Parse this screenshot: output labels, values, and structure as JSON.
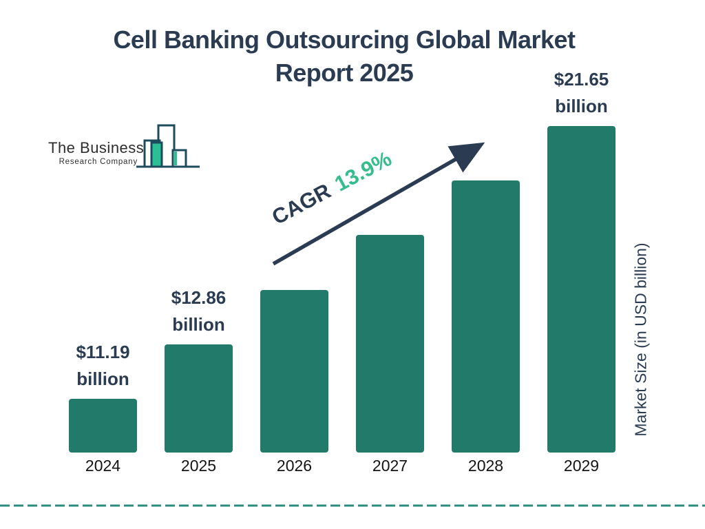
{
  "header": {
    "title_line1": "Cell Banking Outsourcing Global Market",
    "title_line2": "Report 2025"
  },
  "logo": {
    "name_line1": "The Business",
    "name_line2": "Research Company",
    "outline_color": "#1D4B5E",
    "fill_color": "#2BBF96"
  },
  "chart_data": {
    "type": "bar",
    "title": "Cell Banking Outsourcing Global Market Report 2025",
    "categories": [
      "2024",
      "2025",
      "2026",
      "2027",
      "2028",
      "2029"
    ],
    "values": [
      11.19,
      12.86,
      14.65,
      16.68,
      19.0,
      21.65
    ],
    "value_labels": [
      {
        "category": "2024",
        "line1": "$11.19",
        "line2": "billion"
      },
      {
        "category": "2025",
        "line1": "$12.86",
        "line2": "billion"
      },
      {
        "category": "2029",
        "line1": "$21.65",
        "line2": "billion"
      }
    ],
    "cagr": {
      "label": "CAGR",
      "value": "13.9%"
    },
    "ylabel_right": "Market Size (in USD billion)",
    "xlabel": "",
    "ylim": [
      0,
      24
    ],
    "grid": false,
    "legend": "none",
    "bar_color": "#227A6B",
    "accent_navy": "#2B3C52",
    "accent_green": "#35BD8D",
    "baseline_dash_color": "#2B8C7E"
  }
}
